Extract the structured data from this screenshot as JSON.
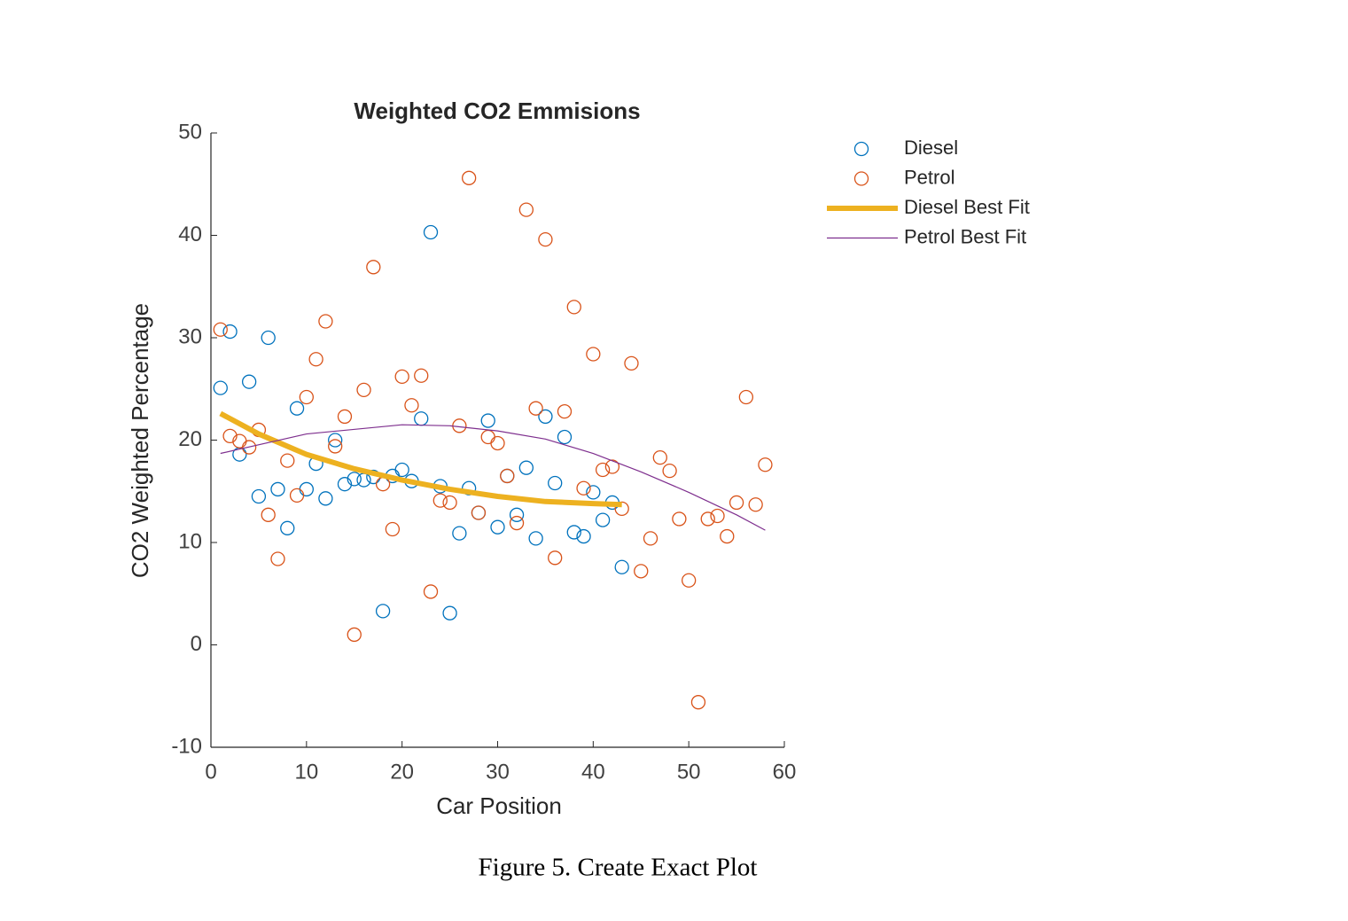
{
  "chart_data": {
    "type": "scatter",
    "title": "Weighted CO2 Emmisions",
    "x_label": "Car Position",
    "y_label": "CO2 Weighted Percentage",
    "xlim": [
      0,
      60
    ],
    "xticks": [
      0,
      10,
      20,
      30,
      40,
      50,
      60
    ],
    "ylim": [
      -10,
      50
    ],
    "yticks": [
      -10,
      0,
      10,
      20,
      30,
      40,
      50
    ],
    "legend": "outside-top-right",
    "series": [
      {
        "name": "Diesel",
        "mode": "markers",
        "color": "#0072BD",
        "x": [
          1,
          2,
          3,
          4,
          5,
          6,
          7,
          8,
          9,
          10,
          11,
          12,
          13,
          14,
          15,
          16,
          17,
          18,
          19,
          20,
          21,
          22,
          23,
          24,
          25,
          26,
          27,
          28,
          29,
          30,
          31,
          32,
          33,
          34,
          35,
          36,
          37,
          38,
          39,
          40,
          41,
          42,
          43
        ],
        "values": [
          25.1,
          30.6,
          18.6,
          25.7,
          14.5,
          30,
          15.2,
          11.4,
          23.1,
          15.2,
          17.7,
          14.3,
          20,
          15.7,
          16.2,
          16.1,
          16.4,
          3.3,
          16.5,
          17.1,
          16,
          22.1,
          40.3,
          15.5,
          3.1,
          10.9,
          15.3,
          12.9,
          21.9,
          11.5,
          16.5,
          12.7,
          17.3,
          10.4,
          22.3,
          15.8,
          20.3,
          11,
          10.6,
          14.9,
          12.2,
          13.9,
          7.6
        ]
      },
      {
        "name": "Petrol",
        "mode": "markers",
        "color": "#D95319",
        "x": [
          1,
          2,
          3,
          4,
          5,
          6,
          7,
          8,
          9,
          10,
          11,
          12,
          13,
          14,
          15,
          16,
          17,
          18,
          19,
          20,
          21,
          22,
          23,
          24,
          25,
          26,
          27,
          28,
          29,
          30,
          31,
          32,
          33,
          34,
          35,
          36,
          37,
          38,
          39,
          40,
          41,
          42,
          43,
          44,
          45,
          46,
          47,
          48,
          49,
          50,
          51,
          52,
          53,
          54,
          55,
          56,
          57,
          58
        ],
        "values": [
          30.8,
          20.4,
          19.9,
          19.3,
          21,
          12.7,
          8.4,
          18,
          14.6,
          24.2,
          27.9,
          31.6,
          19.4,
          22.3,
          1,
          24.9,
          36.9,
          15.7,
          11.3,
          26.2,
          23.4,
          26.3,
          5.2,
          14.1,
          13.9,
          21.4,
          45.6,
          12.9,
          20.3,
          19.7,
          16.5,
          11.9,
          42.5,
          23.1,
          39.6,
          8.5,
          22.8,
          33,
          15.3,
          28.4,
          17.1,
          17.4,
          13.3,
          27.5,
          7.2,
          10.4,
          18.3,
          17,
          12.3,
          6.3,
          -5.6,
          12.3,
          12.6,
          10.6,
          13.9,
          24.2,
          13.7,
          17.6
        ]
      },
      {
        "name": "Diesel Best Fit",
        "mode": "line",
        "line_width": 6,
        "color": "#EDB120",
        "x": [
          1,
          5,
          10,
          15,
          20,
          25,
          30,
          35,
          40,
          43
        ],
        "values": [
          22.6,
          20.6,
          18.6,
          17.2,
          16.1,
          15.2,
          14.5,
          14.0,
          13.8,
          13.7
        ]
      },
      {
        "name": "Petrol Best Fit",
        "mode": "line",
        "line_width": 1.2,
        "color": "#7E2F8E",
        "x": [
          1,
          10,
          20,
          25,
          30,
          35,
          40,
          45,
          50,
          55,
          58
        ],
        "values": [
          18.7,
          20.6,
          21.5,
          21.4,
          20.9,
          20.1,
          18.7,
          16.9,
          14.9,
          12.7,
          11.2
        ]
      }
    ]
  },
  "caption": "Figure 5. Create Exact Plot"
}
